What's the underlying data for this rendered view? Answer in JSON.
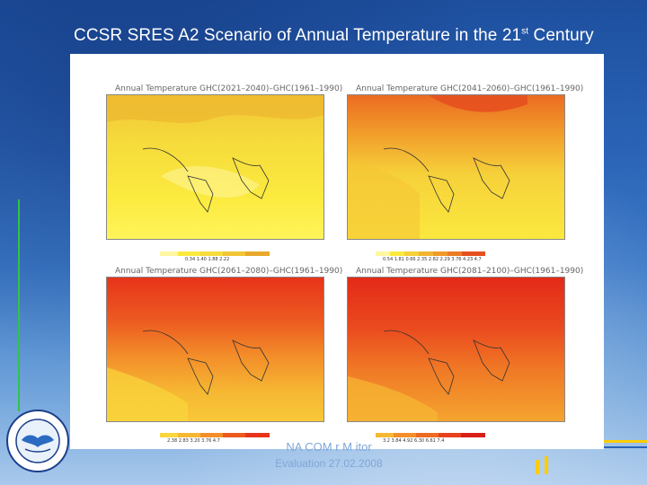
{
  "slide": {
    "title_main": "CCSR SRES A2 Scenario of Annual Temperature in the 21",
    "title_sup": "st",
    "title_end": " Century"
  },
  "maps": [
    {
      "title": "Annual Temperature  GHC(2021–2040)–GHC(1961–1990)",
      "colorbar": "0.34  1.40  1.88  2.22"
    },
    {
      "title": "Annual Temperature  GHC(2041–2060)–GHC(1961–1990)",
      "colorbar": "0.54  1.81  0.66  2.35  2.82  2.29  3.76  4.23  4.7"
    },
    {
      "title": "Annual Temperature  GHC(2061–2080)–GHC(1961–1990)",
      "colorbar": "2.38  2.83  3.20  3.76  4.7"
    },
    {
      "title": "Annual Temperature  GHC(2081–2100)–GHC(1961–1990)",
      "colorbar": "3.2  3.84  4.92  6.30  6.61  7.4"
    }
  ],
  "footer": {
    "line1": "NA  COM  r        M  itor",
    "line2": "Evaluation   27.02.2008"
  },
  "colors": {
    "accent_green": "#32c24a",
    "accent_yellow": "#ffcc00"
  }
}
